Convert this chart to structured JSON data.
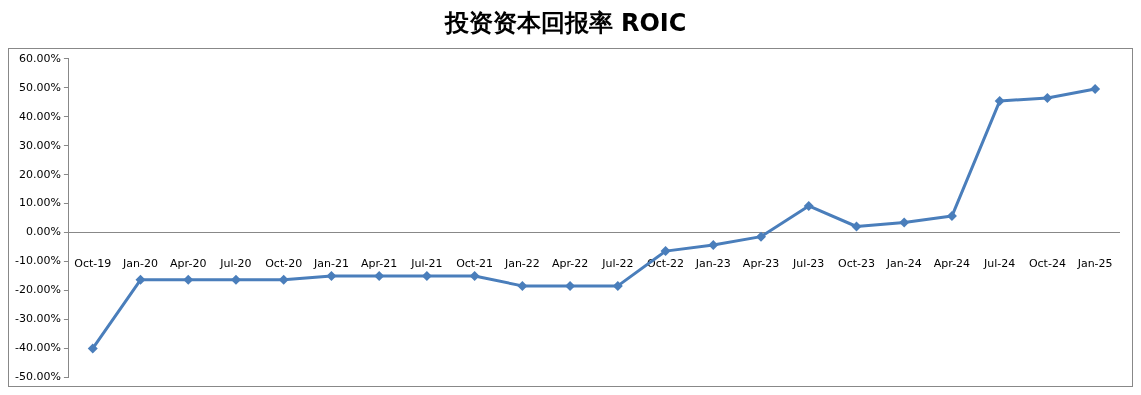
{
  "chart_data": {
    "type": "line",
    "title": "投资资本回报率 ROIC",
    "categories": [
      "Oct-19",
      "Jan-20",
      "Apr-20",
      "Jul-20",
      "Oct-20",
      "Jan-21",
      "Apr-21",
      "Jul-21",
      "Oct-21",
      "Jan-22",
      "Apr-22",
      "Jul-22",
      "Oct-22",
      "Jan-23",
      "Apr-23",
      "Jul-23",
      "Oct-23",
      "Jan-24",
      "Apr-24",
      "Jul-24",
      "Oct-24",
      "Jan-25"
    ],
    "series": [
      {
        "color": "#4a7ebb",
        "values": [
          -40,
          -16.3,
          -16.3,
          -16.3,
          -16.3,
          -15,
          -15,
          -15,
          -15,
          -18.4,
          -18.4,
          -18.4,
          -6.4,
          -4.3,
          -1.4,
          9.2,
          2.1,
          3.5,
          5.7,
          45.4,
          46.5,
          49.6
        ]
      }
    ],
    "ylim": [
      -50,
      60
    ],
    "yticks": [
      {
        "value": -50,
        "label": "-50.00%"
      },
      {
        "value": -40,
        "label": "-40.00%"
      },
      {
        "value": -30,
        "label": "-30.00%"
      },
      {
        "value": -20,
        "label": "-20.00%"
      },
      {
        "value": -10,
        "label": "-10.00%"
      },
      {
        "value": 0,
        "label": "0.00%"
      },
      {
        "value": 10,
        "label": "10.00%"
      },
      {
        "value": 20,
        "label": "20.00%"
      },
      {
        "value": 30,
        "label": "30.00%"
      },
      {
        "value": 40,
        "label": "40.00%"
      },
      {
        "value": 50,
        "label": "50.00%"
      },
      {
        "value": 60,
        "label": "60.00%"
      }
    ],
    "grid": false,
    "legend": false,
    "marker": "diamond",
    "line_style": "solid"
  }
}
